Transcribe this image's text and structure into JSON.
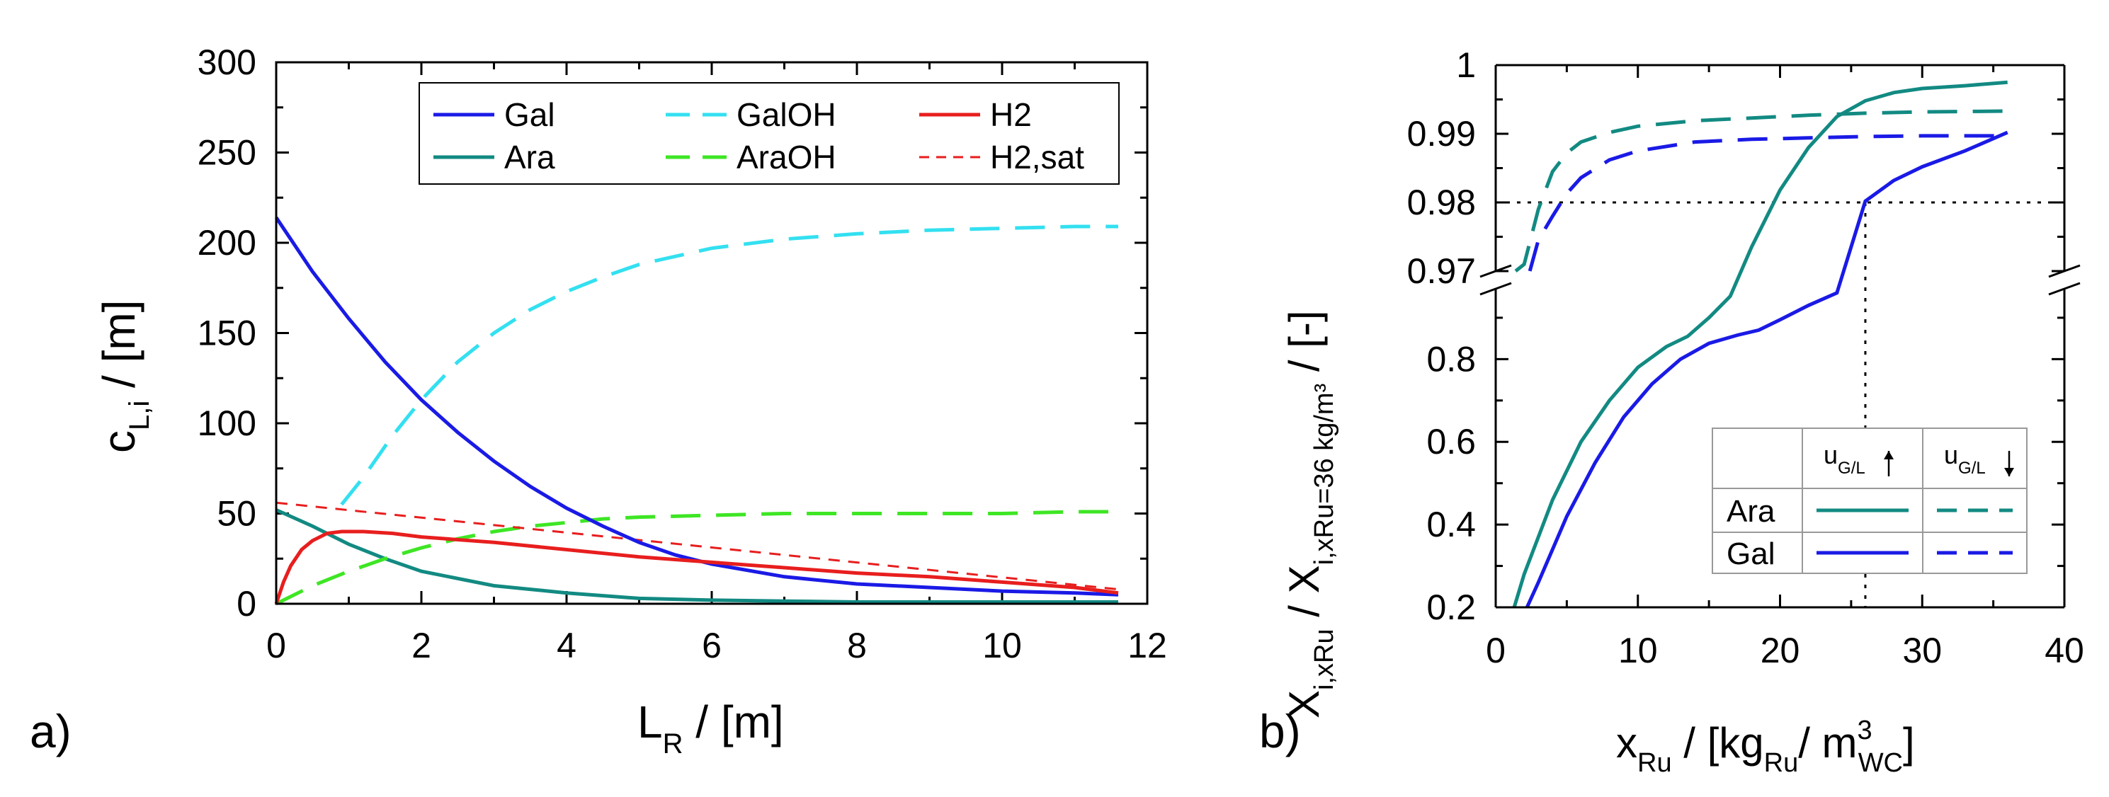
{
  "chart_data": [
    {
      "panel": "a)",
      "type": "line",
      "xlabel": {
        "main": "L",
        "sub": "R",
        "rest": " / [m]"
      },
      "ylabel": {
        "main": "c",
        "sub": "L,i",
        "rest": " / [m]"
      },
      "xlim": [
        0,
        12
      ],
      "ylim": [
        0,
        300
      ],
      "xticks": [
        0,
        2,
        4,
        6,
        8,
        10,
        12
      ],
      "yticks": [
        0,
        50,
        100,
        150,
        200,
        250,
        300
      ],
      "series": [
        {
          "name": "Gal",
          "color": "#1a1ae6",
          "dash": "solid",
          "x": [
            0,
            0.5,
            1,
            1.5,
            2,
            2.5,
            3,
            3.5,
            4,
            4.5,
            5,
            5.5,
            6,
            7,
            8,
            9,
            10,
            11,
            11.6
          ],
          "y": [
            214,
            184,
            158,
            134,
            113,
            95,
            79,
            65,
            53,
            43,
            34,
            27,
            22,
            15,
            11,
            9,
            7,
            6,
            5
          ]
        },
        {
          "name": "GalOH",
          "color": "#33e0f0",
          "dash": "long",
          "x": [
            0.9,
            1.2,
            1.6,
            2,
            2.5,
            3,
            3.5,
            4,
            4.5,
            5,
            6,
            7,
            8,
            9,
            10,
            11,
            11.6
          ],
          "y": [
            55,
            70,
            93,
            113,
            134,
            150,
            163,
            173,
            181,
            188,
            197,
            202,
            205,
            207,
            208,
            209,
            209
          ]
        },
        {
          "name": "H2",
          "color": "#e81e1e",
          "dash": "solid",
          "x": [
            0,
            0.1,
            0.2,
            0.35,
            0.5,
            0.7,
            0.9,
            1.2,
            1.6,
            2,
            3,
            4,
            5,
            6,
            7,
            8,
            9,
            10,
            11,
            11.6
          ],
          "y": [
            0,
            12,
            21,
            30,
            35,
            39,
            40,
            40,
            39,
            37,
            34,
            30,
            26,
            23,
            20,
            17,
            15,
            12,
            9,
            6
          ]
        },
        {
          "name": "Ara",
          "color": "#128a82",
          "dash": "solid",
          "x": [
            0,
            0.5,
            1,
            1.5,
            2,
            3,
            4,
            5,
            6,
            7,
            8,
            9,
            10,
            11,
            11.6
          ],
          "y": [
            52,
            43,
            33,
            25,
            18,
            10,
            6,
            3,
            2,
            1.5,
            1,
            1,
            1,
            1,
            1
          ]
        },
        {
          "name": "AraOH",
          "color": "#3ee624",
          "dash": "long",
          "x": [
            0,
            0.5,
            1,
            1.5,
            2,
            2.5,
            3,
            3.5,
            4,
            4.5,
            5,
            6,
            7,
            8,
            9,
            10,
            11,
            11.6
          ],
          "y": [
            0,
            10,
            18,
            25,
            31,
            36,
            40,
            43,
            45,
            47,
            48,
            49,
            50,
            50,
            50,
            50,
            51,
            51
          ]
        },
        {
          "name": "H2,sat",
          "color": "#e81e1e",
          "dash": "short",
          "x": [
            0,
            11.6
          ],
          "y": [
            56,
            8
          ]
        }
      ],
      "legend": {
        "position": "top-right",
        "columns": 3,
        "order": [
          "Gal",
          "GalOH",
          "H2",
          "Ara",
          "AraOH",
          "H2,sat"
        ]
      }
    },
    {
      "panel": "b)",
      "type": "line",
      "xlabel": {
        "main": "x",
        "sub": "Ru",
        "rest": " / [kg",
        "sub2": "Ru",
        "rest2": "/ m",
        "sup3": "3",
        "sub3": "WC",
        "rest3": "]"
      },
      "ylabel": {
        "main": "X",
        "sub": "i,xRu",
        "mid": " / X",
        "sub2": "i,xRu=36 kg/m³",
        "rest": " / [-]"
      },
      "xlim": [
        0,
        40
      ],
      "xticks": [
        0,
        10,
        20,
        30,
        40
      ],
      "upper_axis": {
        "ylim": [
          0.97,
          1.0
        ],
        "yticks": [
          0.97,
          0.98,
          0.99,
          1.0
        ],
        "tick_labels": [
          "0.97",
          "0.98",
          "0.99",
          "1"
        ]
      },
      "lower_axis": {
        "ylim": [
          0.2,
          0.97
        ],
        "yticks": [
          0.2,
          0.4,
          0.6,
          0.8
        ],
        "tick_labels": [
          "0.2",
          "0.4",
          "0.6",
          "0.8"
        ]
      },
      "reference_lines": {
        "y": 0.98,
        "x": 26
      },
      "series": [
        {
          "name": "Ara u_G/L up",
          "color": "#128a82",
          "dash": "solid",
          "x": [
            1.3,
            2,
            4,
            6,
            8,
            10,
            12,
            13.5,
            15,
            16.5,
            18,
            20,
            22,
            24,
            26,
            28,
            30,
            33,
            36
          ],
          "y": [
            0.2,
            0.28,
            0.46,
            0.6,
            0.7,
            0.78,
            0.83,
            0.855,
            0.9,
            0.952,
            0.9735,
            0.9818,
            0.988,
            0.9925,
            0.9948,
            0.996,
            0.9966,
            0.997,
            0.9975
          ]
        },
        {
          "name": "Gal u_G/L up",
          "color": "#1a1ae6",
          "dash": "solid",
          "x": [
            2.2,
            3,
            5,
            7,
            9,
            11,
            13,
            15,
            17,
            18.5,
            20,
            22,
            24,
            26,
            28,
            30,
            33,
            36
          ],
          "y": [
            0.2,
            0.26,
            0.42,
            0.55,
            0.66,
            0.74,
            0.8,
            0.838,
            0.858,
            0.87,
            0.895,
            0.93,
            0.96,
            0.9802,
            0.9832,
            0.9852,
            0.9875,
            0.9902
          ]
        },
        {
          "name": "Ara u_G/L down",
          "color": "#128a82",
          "dash": "long",
          "x": [
            1.4,
            2,
            3,
            4,
            5,
            6,
            8,
            10,
            14,
            18,
            22,
            26,
            30,
            36
          ],
          "y": [
            0.97,
            0.971,
            0.979,
            0.9845,
            0.9872,
            0.9888,
            0.9902,
            0.9911,
            0.9919,
            0.9923,
            0.9927,
            0.993,
            0.9932,
            0.9933
          ]
        },
        {
          "name": "Gal u_G/L down",
          "color": "#1a1ae6",
          "dash": "long",
          "x": [
            2.4,
            3,
            4,
            5,
            6,
            8,
            10,
            14,
            18,
            22,
            26,
            30,
            36
          ],
          "y": [
            0.97,
            0.9745,
            0.978,
            0.9813,
            0.9836,
            0.9862,
            0.9875,
            0.9888,
            0.9892,
            0.9894,
            0.9896,
            0.9897,
            0.9897
          ]
        }
      ],
      "legend_table": {
        "position": "bottom-right",
        "headers": [
          {
            "main": "u",
            "sub": "G/L",
            "arrow": "up"
          },
          {
            "main": "u",
            "sub": "G/L",
            "arrow": "down"
          }
        ],
        "rows": [
          "Ara",
          "Gal"
        ]
      }
    }
  ],
  "style": {
    "axis_color": "#000000",
    "ref_line_color": "#000000"
  }
}
